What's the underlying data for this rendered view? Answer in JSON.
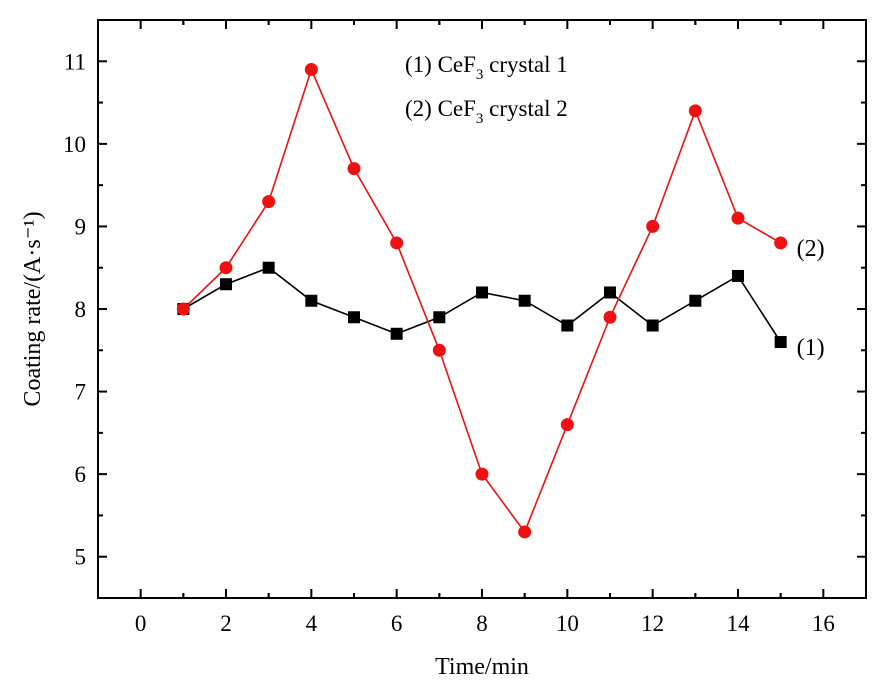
{
  "chart_data": {
    "type": "line",
    "xlabel": "Time/min",
    "ylabel": "Coating rate/(A·s⁻¹)",
    "xlim": [
      -1,
      17
    ],
    "ylim": [
      4.5,
      11.5
    ],
    "xticks": [
      "0",
      "2",
      "4",
      "6",
      "8",
      "10",
      "12",
      "14",
      "16"
    ],
    "yticks": [
      "5",
      "6",
      "7",
      "8",
      "9",
      "10",
      "11"
    ],
    "legend": [
      {
        "id": "(1)",
        "prefix": "(1) CeF",
        "sub": "3",
        "suffix": " crystal 1"
      },
      {
        "id": "(2)",
        "prefix": "(2) CeF",
        "sub": "3",
        "suffix": " crystal 2"
      }
    ],
    "series": [
      {
        "name": "(1)",
        "end_label": "(1)",
        "color": "#000000",
        "marker": "square",
        "x": [
          1,
          2,
          3,
          4,
          5,
          6,
          7,
          8,
          9,
          10,
          11,
          12,
          13,
          14,
          15
        ],
        "y": [
          8.0,
          8.3,
          8.5,
          8.1,
          7.9,
          7.7,
          7.9,
          8.2,
          8.1,
          7.8,
          8.2,
          7.8,
          8.1,
          8.4,
          7.6
        ]
      },
      {
        "name": "(2)",
        "end_label": "(2)",
        "color": "#ee1111",
        "marker": "circle",
        "x": [
          1,
          2,
          3,
          4,
          5,
          6,
          7,
          8,
          9,
          10,
          11,
          12,
          13,
          14,
          15
        ],
        "y": [
          8.0,
          8.5,
          9.3,
          10.9,
          9.7,
          8.8,
          7.5,
          6.0,
          5.3,
          6.6,
          7.9,
          9.0,
          10.4,
          9.1,
          8.8
        ]
      }
    ]
  }
}
